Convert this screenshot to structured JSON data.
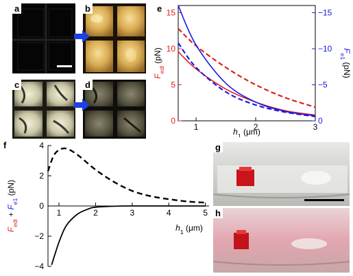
{
  "panels": {
    "a": "a",
    "b": "b",
    "c": "c",
    "d": "d",
    "e": "e",
    "f": "f",
    "g": "g",
    "h": "h"
  },
  "colors": {
    "edl": "#e0201b",
    "e1": "#1a1ae6",
    "arrow": "#1f3fe0",
    "black": "#000000"
  },
  "icons": {
    "arrow_ab": "right-arrow-icon",
    "arrow_cd": "right-arrow-icon",
    "scale_bar_a": "scale-bar",
    "scale_bar_g": "scale-bar"
  },
  "chart_data": [
    {
      "panel": "e",
      "type": "line",
      "x_axis": {
        "symbol": "h",
        "subscript": "1",
        "unit": "(μm)",
        "ticks": [
          "1",
          "2",
          "3"
        ],
        "range": [
          0.7,
          3
        ]
      },
      "y_left_axis": {
        "symbol": "F",
        "subscript": "edl",
        "unit": "(pN)",
        "ticks": [
          "0",
          "5",
          "10",
          "15"
        ],
        "range": [
          0,
          16
        ],
        "color": "red"
      },
      "y_right_axis": {
        "symbol": "F",
        "subscript": "e1",
        "unit": "(pN)",
        "ticks": [
          "0",
          "−5",
          "−10",
          "−15"
        ],
        "range": [
          0,
          -16
        ],
        "color": "blue"
      },
      "series": [
        {
          "axis": "left",
          "color": "red",
          "style": "solid",
          "x": [
            0.7,
            1.0,
            1.5,
            2.0,
            2.5,
            3.0
          ],
          "y": [
            9.6,
            7.2,
            4.4,
            2.6,
            1.4,
            0.8
          ]
        },
        {
          "axis": "left",
          "color": "red",
          "style": "dashed",
          "x": [
            0.7,
            1.0,
            1.5,
            2.0,
            2.5,
            3.0
          ],
          "y": [
            12.8,
            10.4,
            7.4,
            5.0,
            3.2,
            1.9
          ]
        },
        {
          "axis": "right",
          "color": "blue",
          "style": "solid",
          "x": [
            0.7,
            1.0,
            1.5,
            2.0,
            2.5,
            3.0
          ],
          "y": [
            -16.0,
            -10.5,
            -5.2,
            -2.6,
            -1.3,
            -0.7
          ]
        },
        {
          "axis": "right",
          "color": "blue",
          "style": "dashed",
          "x": [
            0.7,
            1.0,
            1.5,
            2.0,
            2.5,
            3.0
          ],
          "y": [
            -10.8,
            -7.4,
            -4.0,
            -2.2,
            -1.2,
            -0.6
          ]
        }
      ]
    },
    {
      "panel": "f",
      "type": "line",
      "x_axis": {
        "symbol": "h",
        "subscript": "1",
        "unit": "(μm)",
        "ticks": [
          "1",
          "2",
          "3",
          "4",
          "5"
        ],
        "range": [
          0.7,
          5.1
        ]
      },
      "y_axis": {
        "label_parts": [
          "F",
          "edl",
          " + ",
          "F",
          "e1",
          " (pN)"
        ],
        "ticks": [
          "4",
          "2",
          "0",
          "−2",
          "−4"
        ],
        "range": [
          -4,
          4
        ]
      },
      "series": [
        {
          "color": "black",
          "style": "dashed",
          "x": [
            0.7,
            0.85,
            1.0,
            1.2,
            1.5,
            2.0,
            2.5,
            3.0,
            3.5,
            4.0,
            4.5,
            5.0
          ],
          "y": [
            2.3,
            3.3,
            3.7,
            3.8,
            3.4,
            2.4,
            1.6,
            1.0,
            0.65,
            0.45,
            0.3,
            0.22
          ]
        },
        {
          "color": "black",
          "style": "solid",
          "x": [
            0.8,
            1.0,
            1.2,
            1.5,
            1.8,
            2.0,
            2.5,
            3.0,
            4.0,
            5.0
          ],
          "y": [
            -3.9,
            -2.4,
            -1.3,
            -0.55,
            -0.2,
            -0.08,
            -0.02,
            0,
            0,
            0
          ]
        }
      ]
    }
  ]
}
